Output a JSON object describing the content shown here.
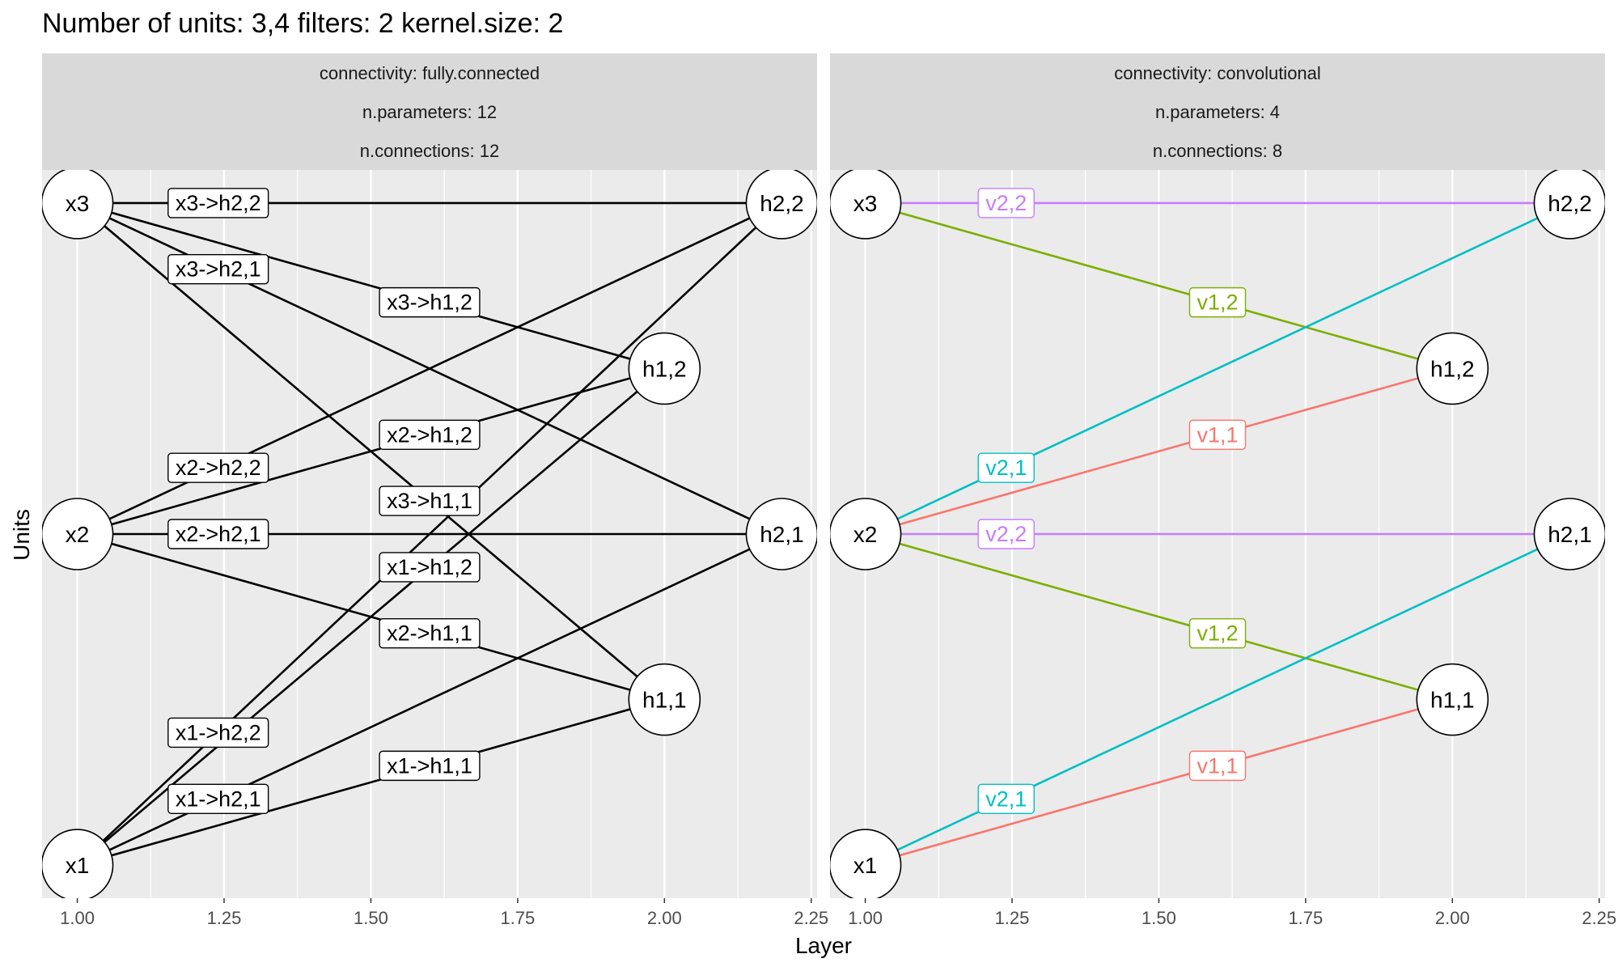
{
  "title": "Number of units: 3,4 filters: 2 kernel.size: 2",
  "xlabel": "Layer",
  "ylabel": "Units",
  "colors": {
    "panel_bg": "#ebebeb",
    "strip_bg": "#d9d9d9",
    "grid_major": "#ffffff",
    "v1_1": "#F8766D",
    "v1_2": "#7CAE00",
    "v2_1": "#00BFC4",
    "v2_2": "#C77CFF",
    "edge_black": "#000000"
  },
  "chart_data": {
    "type": "network",
    "xlim": [
      0.94,
      2.26
    ],
    "ylim": [
      0.9,
      3.1
    ],
    "x_ticks": [
      "1.00",
      "1.25",
      "1.50",
      "1.75",
      "2.00",
      "2.25"
    ],
    "nodes": [
      {
        "label": "x1",
        "x": 1.0,
        "y": 1.0
      },
      {
        "label": "x2",
        "x": 1.0,
        "y": 2.0
      },
      {
        "label": "x3",
        "x": 1.0,
        "y": 3.0
      },
      {
        "label": "h1,1",
        "x": 2.0,
        "y": 1.5
      },
      {
        "label": "h1,2",
        "x": 2.0,
        "y": 2.5
      },
      {
        "label": "h2,1",
        "x": 2.2,
        "y": 2.0
      },
      {
        "label": "h2,2",
        "x": 2.2,
        "y": 3.0
      }
    ],
    "panels": [
      {
        "strips": [
          "connectivity: fully.connected",
          "n.parameters: 12",
          "n.connections: 12"
        ],
        "edges": [
          {
            "from": "x3",
            "to": "h2,2",
            "label": "x3->h2,2",
            "lx": 1.24,
            "ly": 3.0
          },
          {
            "from": "x3",
            "to": "h2,1",
            "label": "x3->h2,1",
            "lx": 1.24,
            "ly": 2.8
          },
          {
            "from": "x3",
            "to": "h1,2",
            "label": "x3->h1,2",
            "lx": 1.6,
            "ly": 2.7
          },
          {
            "from": "x3",
            "to": "h1,1",
            "label": "x3->h1,1",
            "lx": 1.6,
            "ly": 2.1
          },
          {
            "from": "x2",
            "to": "h2,2",
            "label": "x2->h2,2",
            "lx": 1.24,
            "ly": 2.2
          },
          {
            "from": "x2",
            "to": "h2,1",
            "label": "x2->h2,1",
            "lx": 1.24,
            "ly": 2.0
          },
          {
            "from": "x2",
            "to": "h1,2",
            "label": "x2->h1,2",
            "lx": 1.6,
            "ly": 2.3
          },
          {
            "from": "x2",
            "to": "h1,1",
            "label": "x2->h1,1",
            "lx": 1.6,
            "ly": 1.7
          },
          {
            "from": "x1",
            "to": "h2,2",
            "label": "x1->h2,2",
            "lx": 1.24,
            "ly": 1.4
          },
          {
            "from": "x1",
            "to": "h2,1",
            "label": "x1->h2,1",
            "lx": 1.24,
            "ly": 1.2
          },
          {
            "from": "x1",
            "to": "h1,2",
            "label": "x1->h1,2",
            "lx": 1.6,
            "ly": 1.9
          },
          {
            "from": "x1",
            "to": "h1,1",
            "label": "x1->h1,1",
            "lx": 1.6,
            "ly": 1.3
          }
        ]
      },
      {
        "strips": [
          "connectivity: convolutional",
          "n.parameters: 4",
          "n.connections: 8"
        ],
        "edges": [
          {
            "from": "x3",
            "to": "h2,2",
            "label": "v2,2",
            "color": "v2_2",
            "lx": 1.24,
            "ly": 3.0
          },
          {
            "from": "x3",
            "to": "h1,2",
            "label": "v1,2",
            "color": "v1_2",
            "lx": 1.6,
            "ly": 2.7
          },
          {
            "from": "x2",
            "to": "h2,2",
            "label": "v2,1",
            "color": "v2_1",
            "lx": 1.24,
            "ly": 2.2
          },
          {
            "from": "x2",
            "to": "h1,2",
            "label": "v1,1",
            "color": "v1_1",
            "lx": 1.6,
            "ly": 2.3
          },
          {
            "from": "x2",
            "to": "h2,1",
            "label": "v2,2",
            "color": "v2_2",
            "lx": 1.24,
            "ly": 2.0
          },
          {
            "from": "x2",
            "to": "h1,1",
            "label": "v1,2",
            "color": "v1_2",
            "lx": 1.6,
            "ly": 1.7
          },
          {
            "from": "x1",
            "to": "h2,1",
            "label": "v2,1",
            "color": "v2_1",
            "lx": 1.24,
            "ly": 1.2
          },
          {
            "from": "x1",
            "to": "h1,1",
            "label": "v1,1",
            "color": "v1_1",
            "lx": 1.6,
            "ly": 1.3
          }
        ]
      }
    ]
  }
}
